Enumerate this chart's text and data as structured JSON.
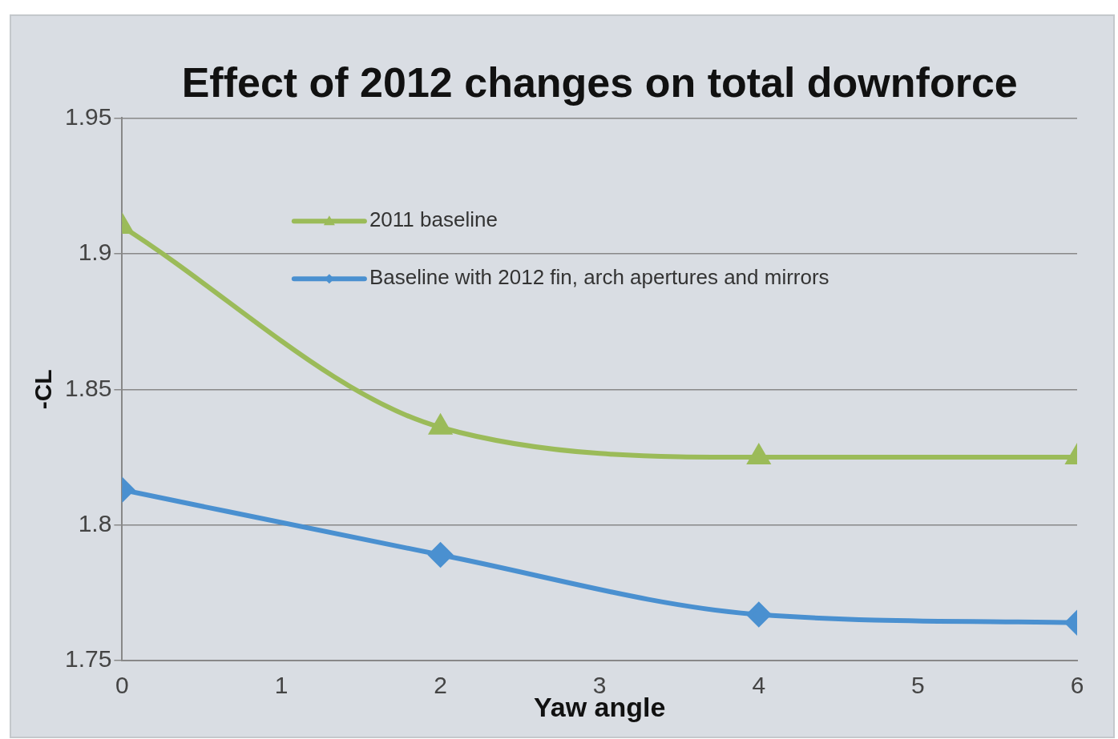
{
  "chart_data": {
    "type": "line",
    "title": "Effect of 2012 changes on total downforce",
    "xlabel": "Yaw angle",
    "ylabel": "-CL",
    "x": [
      0,
      2,
      4,
      6
    ],
    "series": [
      {
        "name": "2011 baseline",
        "color": "#9bbb59",
        "marker": "triangle",
        "values": [
          1.91,
          1.836,
          1.825,
          1.825
        ]
      },
      {
        "name": "Baseline with 2012 fin, arch apertures and mirrors",
        "color": "#4a90d0",
        "marker": "diamond",
        "values": [
          1.813,
          1.789,
          1.767,
          1.764
        ]
      }
    ],
    "xlim": [
      0,
      6
    ],
    "xticks": [
      0,
      1,
      2,
      3,
      4,
      5,
      6
    ],
    "ylim": [
      1.75,
      1.95
    ],
    "yticks": [
      1.75,
      1.8,
      1.85,
      1.9,
      1.95
    ],
    "grid": "y",
    "legend": "top left",
    "line_style": "solid"
  }
}
